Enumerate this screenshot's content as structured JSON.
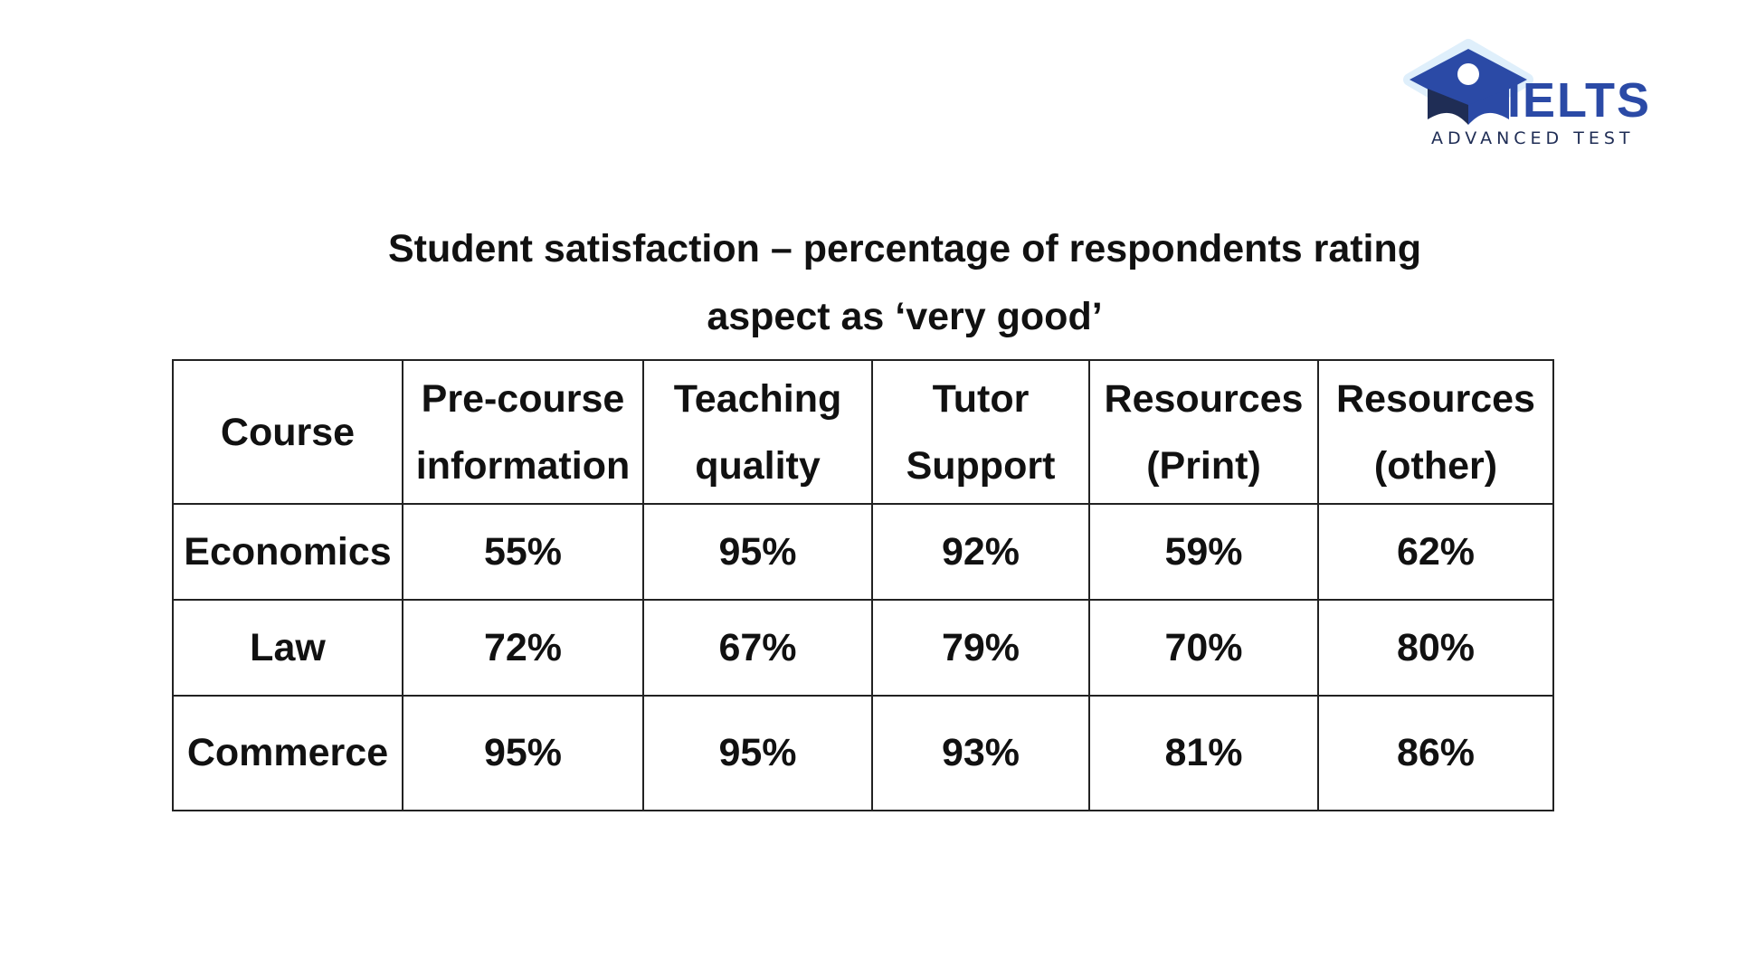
{
  "logo": {
    "word": "IELTS",
    "subtitle": "ADVANCED TEST",
    "colors": {
      "primary": "#2b4aa6",
      "dark": "#1f2d55",
      "glow": "#dfeffb"
    }
  },
  "title": {
    "line1": "Student satisfaction – percentage of respondents rating",
    "line2": "aspect as ‘very good’"
  },
  "chart_data": {
    "type": "table",
    "title": "Student satisfaction – percentage of respondents rating aspect as ‘very good’",
    "header": {
      "course": "Course",
      "columns": [
        {
          "line1": "Pre-course",
          "line2": "information"
        },
        {
          "line1": "Teaching",
          "line2": "quality"
        },
        {
          "line1": "Tutor",
          "line2": "Support"
        },
        {
          "line1": "Resources",
          "line2": "(Print)"
        },
        {
          "line1": "Resources",
          "line2": "(other)"
        }
      ]
    },
    "rows": [
      {
        "course": "Economics",
        "values": [
          "55%",
          "95%",
          "92%",
          "59%",
          "62%"
        ]
      },
      {
        "course": "Law",
        "values": [
          "72%",
          "67%",
          "79%",
          "70%",
          "80%"
        ]
      },
      {
        "course": "Commerce",
        "values": [
          "95%",
          "95%",
          "93%",
          "81%",
          "86%"
        ]
      }
    ]
  }
}
